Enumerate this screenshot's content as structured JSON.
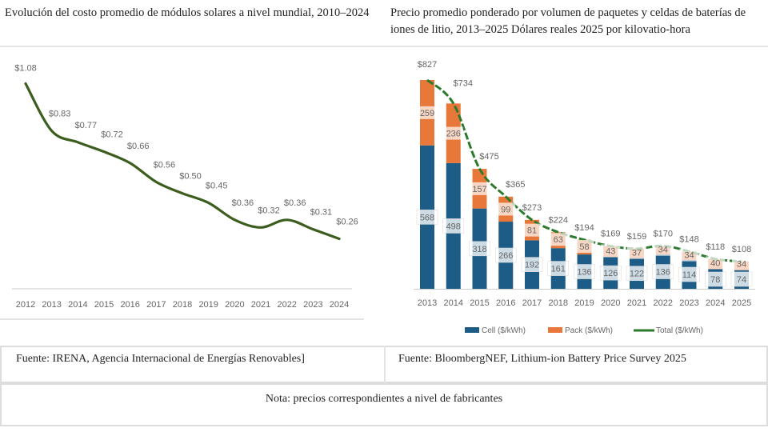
{
  "titles": {
    "left": "Evolución del costo promedio de módulos solares a nivel mundial, 2010–2024",
    "right": "Precio promedio ponderado por volumen de paquetes y celdas de baterías de iones de litio, 2013–2025 Dólares reales 2025 por kilovatio-hora"
  },
  "footer": {
    "source_left": "Fuente: IRENA, Agencia Internacional de Energías Renovables]",
    "source_right": "Fuente: BloombergNEF, Lithium-ion Battery Price Survey 2025",
    "note": "Nota: precios correspondientes a nivel de fabricantes"
  },
  "chart_data": [
    {
      "type": "line",
      "title": "Evolución del costo promedio de módulos solares a nivel mundial, 2010–2024",
      "x": [
        "2012",
        "2013",
        "2014",
        "2015",
        "2016",
        "2017",
        "2018",
        "2019",
        "2020",
        "2021",
        "2022",
        "2023",
        "2024"
      ],
      "values": [
        1.08,
        0.83,
        0.77,
        0.72,
        0.66,
        0.56,
        0.5,
        0.45,
        0.36,
        0.32,
        0.36,
        0.31,
        0.26
      ],
      "labels": [
        "$1.08",
        "$0.83",
        "$0.77",
        "$0.72",
        "$0.66",
        "$0.56",
        "$0.50",
        "$0.45",
        "$0.36",
        "$0.32",
        "$0.36",
        "$0.31",
        "$0.26"
      ],
      "ylim": [
        0,
        1.1
      ],
      "color": "#3b5e1f",
      "grid": false
    },
    {
      "type": "bar",
      "stacked": true,
      "title": "Precio promedio ponderado por volumen de paquetes y celdas de baterías de iones de litio, 2013–2025",
      "categories": [
        "2013",
        "2014",
        "2015",
        "2016",
        "2017",
        "2018",
        "2019",
        "2020",
        "2021",
        "2022",
        "2023",
        "2024",
        "2025"
      ],
      "series": [
        {
          "name": "Cell ($/kWh)",
          "color": "#1c5c86",
          "values": [
            568,
            498,
            318,
            266,
            192,
            161,
            136,
            126,
            122,
            136,
            114,
            78,
            74
          ]
        },
        {
          "name": "Pack ($/kWh)",
          "color": "#e8773a",
          "values": [
            259,
            236,
            157,
            99,
            81,
            63,
            58,
            43,
            37,
            34,
            34,
            40,
            34
          ]
        },
        {
          "name": "Total ($/kWh)",
          "color": "#2b7a2b",
          "type": "line",
          "values": [
            827,
            734,
            475,
            365,
            273,
            224,
            194,
            169,
            159,
            170,
            148,
            118,
            108
          ]
        }
      ],
      "total_labels": [
        "$827",
        "$734",
        "$475",
        "$365",
        "$273",
        "$224",
        "$194",
        "$169",
        "$159",
        "$170",
        "$148",
        "$118",
        "$108"
      ],
      "legend": "bottom",
      "ylim": [
        0,
        850
      ]
    }
  ]
}
